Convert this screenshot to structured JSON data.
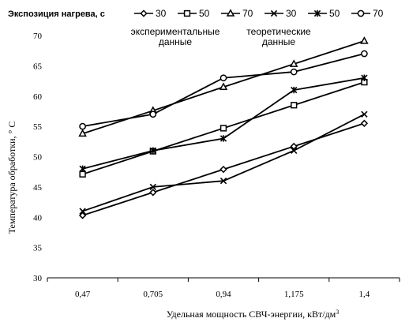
{
  "chart_data": {
    "type": "line",
    "legend_title": "Экспозиция нагрева, с",
    "legend_position": "top",
    "group_labels": {
      "experimental": "экспериментальные данные",
      "theoretical": "теоретические данные"
    },
    "categories": [
      "0,47",
      "0,705",
      "0,94",
      "1,175",
      "1,4"
    ],
    "xlabel": "Удельная мощность СВЧ-энергии, кВт/дм",
    "xlabel_sup": "3",
    "ylabel": "Температура обработки, ° С",
    "ylim": [
      30,
      70
    ],
    "yticks": [
      30,
      35,
      40,
      45,
      50,
      55,
      60,
      65,
      70
    ],
    "grid": false,
    "series": [
      {
        "name": "30",
        "group": "experimental",
        "marker": "diamond",
        "values": [
          40.3,
          44.1,
          47.9,
          51.7,
          55.5
        ]
      },
      {
        "name": "50",
        "group": "experimental",
        "marker": "square",
        "values": [
          47.1,
          50.9,
          54.7,
          58.5,
          62.3
        ]
      },
      {
        "name": "70",
        "group": "experimental",
        "marker": "triangle",
        "values": [
          53.8,
          57.6,
          61.5,
          65.3,
          69.1
        ]
      },
      {
        "name": "30",
        "group": "theoretical",
        "marker": "x",
        "values": [
          41,
          45,
          46,
          51,
          57
        ]
      },
      {
        "name": "50",
        "group": "theoretical",
        "marker": "star",
        "values": [
          48,
          51,
          53,
          61,
          63
        ]
      },
      {
        "name": "70",
        "group": "theoretical",
        "marker": "circle",
        "values": [
          55,
          57,
          63,
          64,
          67
        ]
      }
    ]
  }
}
